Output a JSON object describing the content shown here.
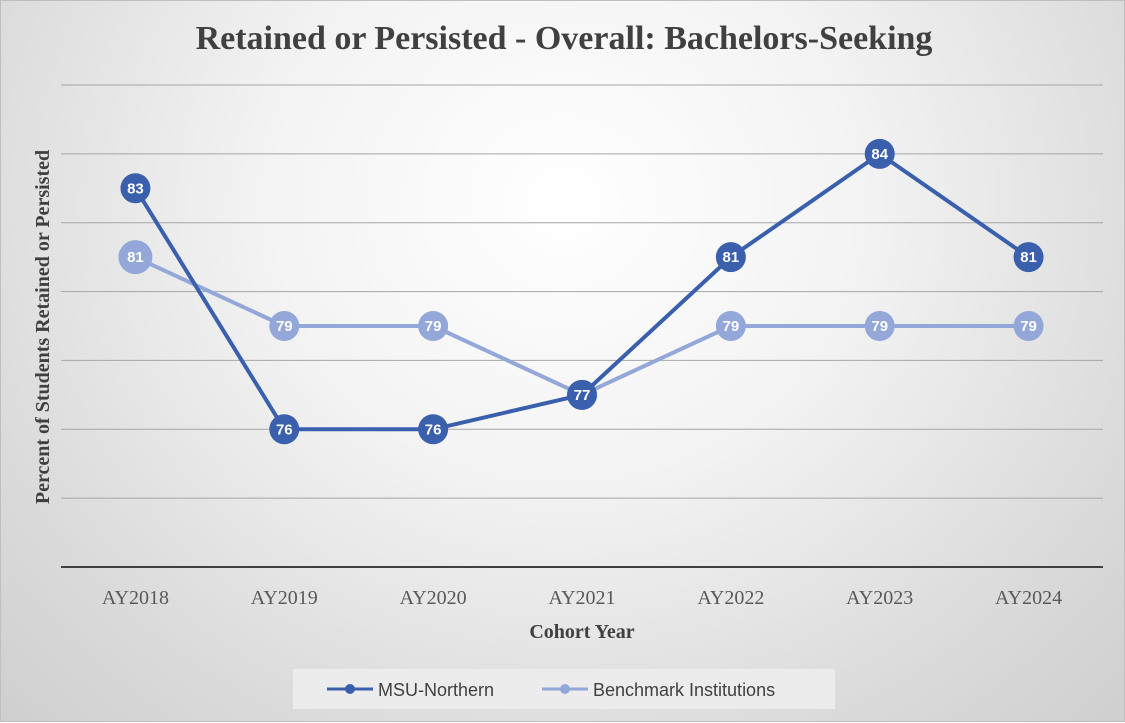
{
  "chart_data": {
    "type": "line",
    "title": "Retained or Persisted - Overall: Bachelors-Seeking",
    "xlabel": "Cohort Year",
    "ylabel": "Percent of  Students Retained or Persisted",
    "categories": [
      "AY2018",
      "AY2019",
      "AY2020",
      "AY2021",
      "AY2022",
      "AY2023",
      "AY2024"
    ],
    "series": [
      {
        "name": "MSU-Northern",
        "values": [
          83,
          76,
          76,
          77,
          81,
          84,
          81
        ],
        "labels": [
          "83",
          "76",
          "76",
          "77",
          "81",
          "84",
          "81"
        ],
        "color": "#3a60ad"
      },
      {
        "name": "Benchmark Institutions",
        "values": [
          81,
          79,
          79,
          77,
          79,
          79,
          79
        ],
        "labels": [
          "81",
          "79",
          "79",
          "77",
          "79",
          "79",
          "79"
        ],
        "color": "#93a7d9"
      }
    ],
    "ylim": [
      72,
      86
    ],
    "grid": true,
    "y_tick_labels_shown": false,
    "data_labels": true,
    "legend_position": "bottom"
  }
}
